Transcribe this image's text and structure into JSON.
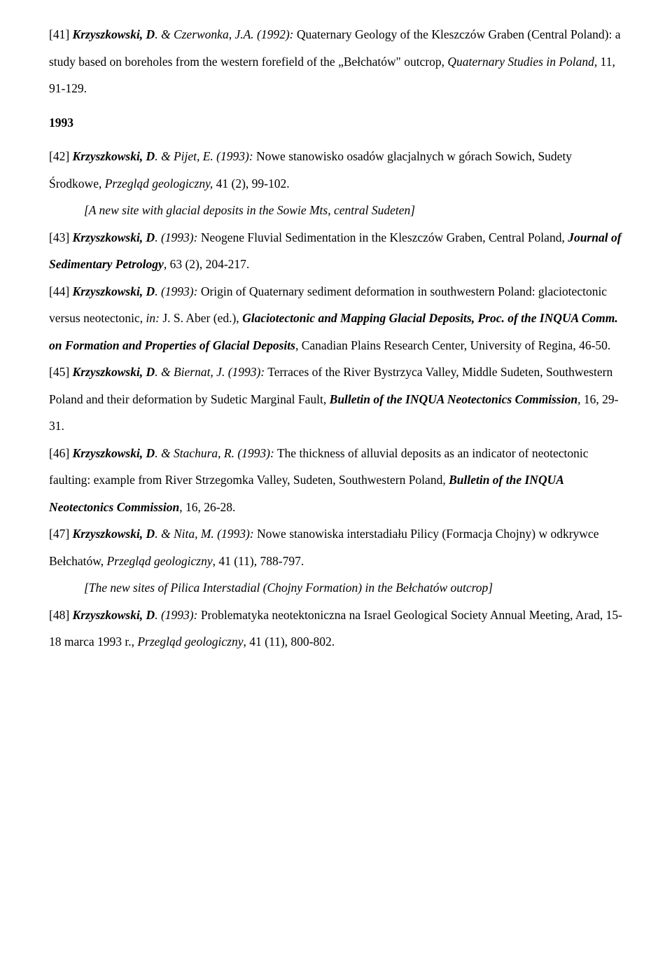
{
  "page": {
    "background": "#ffffff",
    "text_color": "#000000",
    "font_family": "Times New Roman",
    "font_size_pt": 13,
    "line_height": 2.2
  },
  "ref41": {
    "num": "[41] ",
    "author": "Krzyszkowski, D",
    "rest1": ". & Czerwonka, J.A. (1992):",
    "rest2": " Quaternary Geology of the Kleszczów Graben (Central Poland): a study based on boreholes from the western forefield of the „Bełchatów\" outcrop, ",
    "journal": "Quaternary Studies in Poland",
    "rest3": ", 11, 91-129."
  },
  "year1993": "1993",
  "ref42": {
    "num": "[42] ",
    "author": "Krzyszkowski, D",
    "rest1": ". & Pijet, E. (1993): ",
    "rest2": " Nowe stanowisko osadów glacjalnych w górach Sowich, Sudety Środkowe, ",
    "journal": "Przegląd geologiczny,",
    "rest3": " 41 (2), 99-102.",
    "note": "[A new site with glacial deposits in the Sowie Mts, central Sudeten]"
  },
  "ref43": {
    "num": "[43] ",
    "author": "Krzyszkowski, D",
    "rest1": ". (1993):",
    "rest2": " Neogene Fluvial Sedimentation in the Kleszczów Graben, Central Poland, ",
    "journal": "Journal of Sedimentary Petrology",
    "rest3": ", 63 (2), 204-217."
  },
  "ref44": {
    "num": "[44] ",
    "author": "Krzyszkowski, D",
    "rest1": ". (1993):",
    "rest2": " Origin of Quaternary sediment deformation in southwestern Poland: glaciotectonic versus neotectonic, ",
    "in": "in:",
    "rest3": " J. S. Aber (ed.), ",
    "journal": "Glaciotectonic and Mapping Glacial Deposits, Proc. of the INQUA Comm. on Formation and Properties of Glacial Deposits",
    "rest4": ", Canadian Plains Research Center, University of Regina, 46-50."
  },
  "ref45": {
    "num": " [45] ",
    "author": "Krzyszkowski, D",
    "rest1": ". & Biernat, J. (1993):",
    "rest2": " Terraces of the River Bystrzyca Valley, Middle Sudeten, Southwestern Poland and their deformation by Sudetic Marginal Fault, ",
    "journal": "Bulletin of the INQUA Neotectonics Commission",
    "rest3": ",  16, 29-31."
  },
  "ref46": {
    "num": "[46] ",
    "author": "Krzyszkowski, D",
    "rest1": ". & Stachura, R. (1993):",
    "rest2": " The thickness of alluvial deposits as an indicator of neotectonic faulting: example from River Strzegomka Valley, Sudeten, Southwestern Poland, ",
    "journal": "Bulletin of the  INQUA Neotectonics Commission",
    "rest3": ", 16, 26-28."
  },
  "ref47": {
    "num": " [47] ",
    "author": "Krzyszkowski, D",
    "rest1": ".  & Nita, M. (1993):",
    "rest2": " Nowe stanowiska interstadiału Pilicy (Formacja Chojny) w odkrywce Bełchatów, ",
    "journal": "Przegląd geologiczny",
    "rest3": ", 41 (11), 788-797.",
    "note": "[The new sites of Pilica Interstadial (Chojny Formation) in the Bełchatów outcrop]"
  },
  "ref48": {
    "num": " [48] ",
    "author": "Krzyszkowski, D",
    "rest1": ". (1993): ",
    "rest2": " Problematyka neotektoniczna na Israel Geological Society Annual Meeting, Arad, 15-18 marca 1993 r., ",
    "journal": "Przegląd geologiczny",
    "rest3": ", 41 (11), 800-802."
  }
}
